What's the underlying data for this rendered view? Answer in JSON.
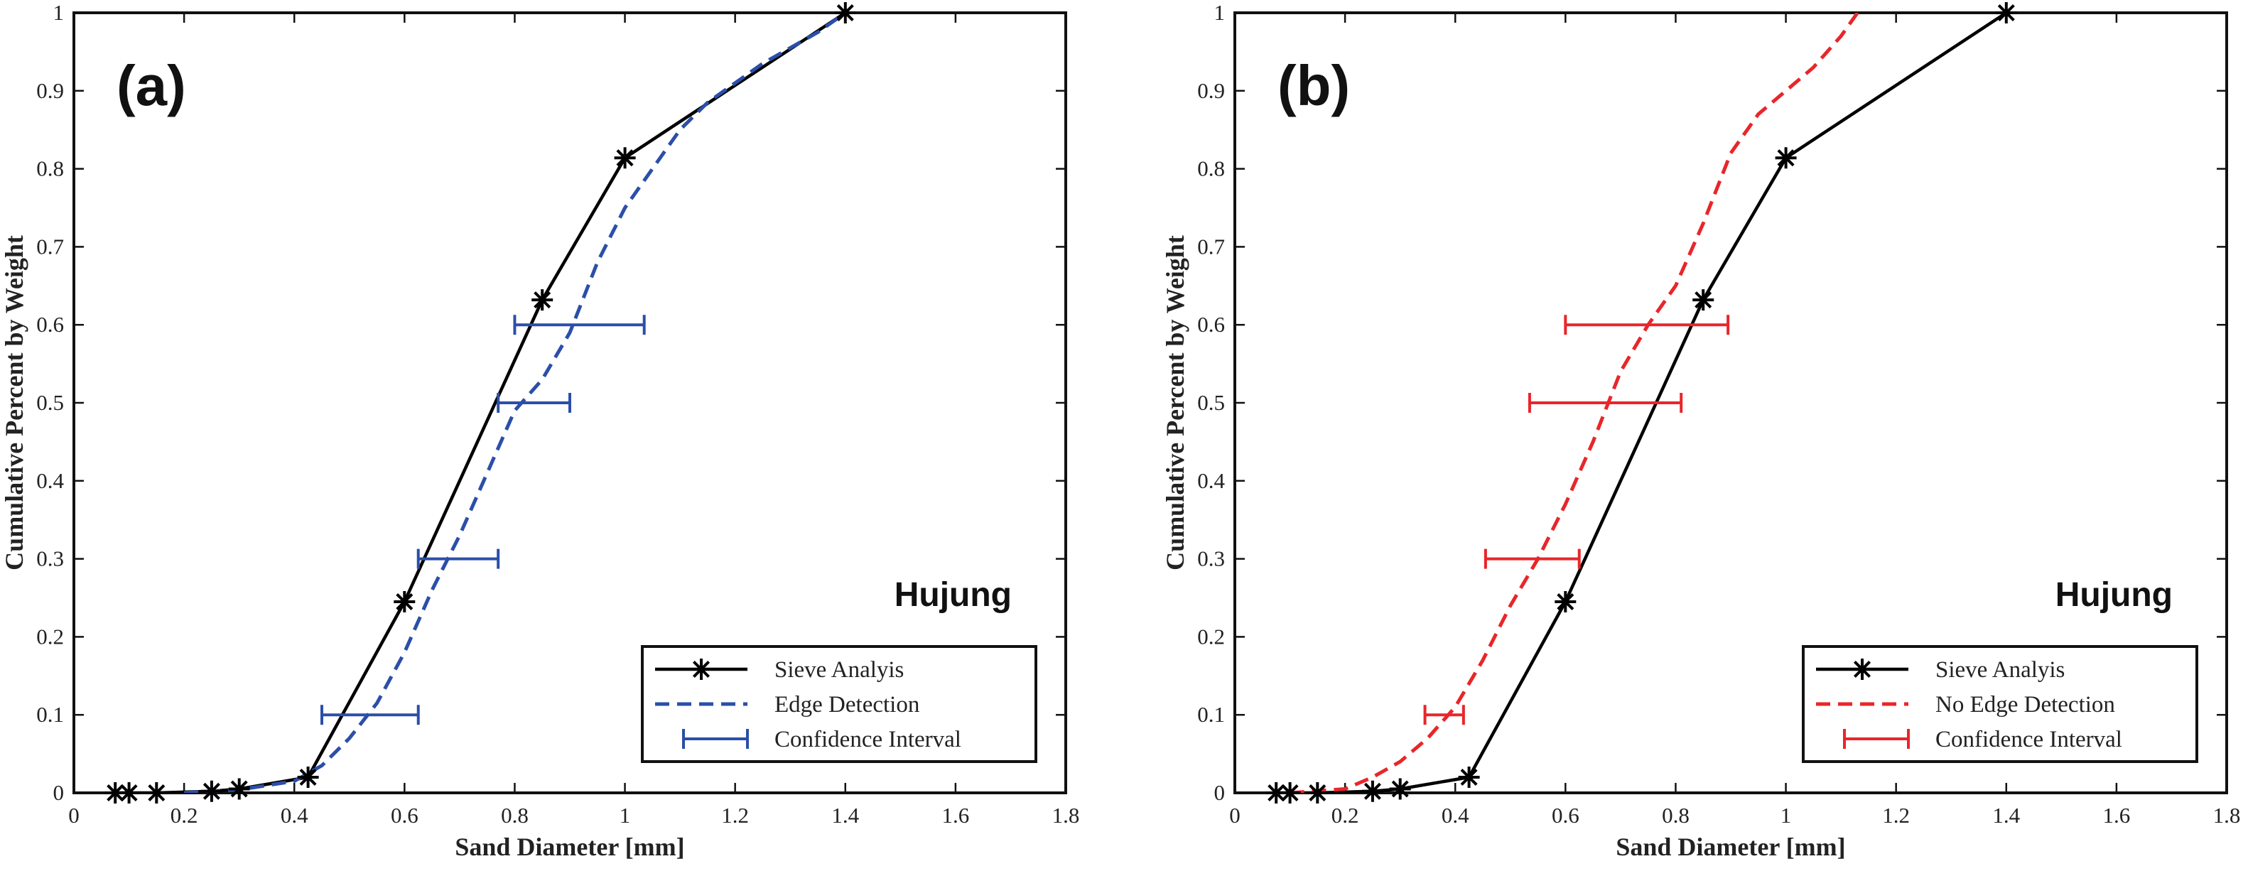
{
  "chart_data": [
    {
      "type": "line",
      "panel_label": "(a)",
      "annotation": "Hujung",
      "xlabel": "Sand Diameter [mm]",
      "ylabel": "Cumulative Percent by Weight",
      "xlim": [
        0,
        1.8
      ],
      "ylim": [
        0,
        1
      ],
      "xticks": [
        0,
        0.2,
        0.4,
        0.6,
        0.8,
        1,
        1.2,
        1.4,
        1.6,
        1.8
      ],
      "xtick_labels": [
        "0",
        "0.2",
        "0.4",
        "0.6",
        "0.8",
        "1",
        "1.2",
        "1.4",
        "1.6",
        "1.8"
      ],
      "yticks": [
        0,
        0.1,
        0.2,
        0.3,
        0.4,
        0.5,
        0.6,
        0.7,
        0.8,
        0.9,
        1
      ],
      "ytick_labels": [
        "0",
        "0.1",
        "0.2",
        "0.3",
        "0.4",
        "0.5",
        "0.6",
        "0.7",
        "0.8",
        "0.9",
        "1"
      ],
      "grid": false,
      "legend_position": "bottom-right",
      "series": [
        {
          "name": "Sieve Analyis",
          "style": "solid-star",
          "color": "#000000",
          "x": [
            0.075,
            0.1,
            0.15,
            0.25,
            0.3,
            0.425,
            0.6,
            0.85,
            1.0,
            1.4
          ],
          "y": [
            0.0,
            0.0,
            0.0,
            0.002,
            0.005,
            0.02,
            0.245,
            0.632,
            0.814,
            1.0
          ]
        },
        {
          "name": "Edge Detection",
          "style": "dashed",
          "color": "#2b4fa8",
          "x": [
            0.2,
            0.3,
            0.4,
            0.45,
            0.5,
            0.55,
            0.6,
            0.65,
            0.7,
            0.75,
            0.8,
            0.85,
            0.9,
            0.95,
            1.0,
            1.05,
            1.1,
            1.15,
            1.2,
            1.25,
            1.3,
            1.35,
            1.4
          ],
          "y": [
            0.0,
            0.004,
            0.015,
            0.035,
            0.07,
            0.115,
            0.18,
            0.26,
            0.33,
            0.41,
            0.49,
            0.53,
            0.59,
            0.68,
            0.75,
            0.8,
            0.85,
            0.885,
            0.91,
            0.935,
            0.955,
            0.975,
            1.0
          ]
        },
        {
          "name": "Confidence Interval",
          "style": "errorbar",
          "color": "#2b4fa8",
          "intervals": [
            {
              "y": 0.1,
              "low": 0.45,
              "high": 0.625
            },
            {
              "y": 0.3,
              "low": 0.625,
              "high": 0.77
            },
            {
              "y": 0.5,
              "low": 0.77,
              "high": 0.9
            },
            {
              "y": 0.6,
              "low": 0.8,
              "high": 1.035
            }
          ]
        }
      ]
    },
    {
      "type": "line",
      "panel_label": "(b)",
      "annotation": "Hujung",
      "xlabel": "Sand Diameter [mm]",
      "ylabel": "Cumulative Percent by Weight",
      "xlim": [
        0,
        1.8
      ],
      "ylim": [
        0,
        1
      ],
      "xticks": [
        0,
        0.2,
        0.4,
        0.6,
        0.8,
        1,
        1.2,
        1.4,
        1.6,
        1.8
      ],
      "xtick_labels": [
        "0",
        "0.2",
        "0.4",
        "0.6",
        "0.8",
        "1",
        "1.2",
        "1.4",
        "1.6",
        "1.8"
      ],
      "yticks": [
        0,
        0.1,
        0.2,
        0.3,
        0.4,
        0.5,
        0.6,
        0.7,
        0.8,
        0.9,
        1
      ],
      "ytick_labels": [
        "0",
        "0.1",
        "0.2",
        "0.3",
        "0.4",
        "0.5",
        "0.6",
        "0.7",
        "0.8",
        "0.9",
        "1"
      ],
      "grid": false,
      "legend_position": "bottom-right",
      "series": [
        {
          "name": "Sieve Analyis",
          "style": "solid-star",
          "color": "#000000",
          "x": [
            0.075,
            0.1,
            0.15,
            0.25,
            0.3,
            0.425,
            0.6,
            0.85,
            1.0,
            1.4
          ],
          "y": [
            0.0,
            0.0,
            0.0,
            0.002,
            0.005,
            0.02,
            0.245,
            0.632,
            0.814,
            1.0
          ]
        },
        {
          "name": "No Edge Detection",
          "style": "dashed",
          "color": "#e8262a",
          "x": [
            0.1,
            0.2,
            0.25,
            0.3,
            0.35,
            0.4,
            0.45,
            0.5,
            0.55,
            0.6,
            0.65,
            0.7,
            0.75,
            0.8,
            0.85,
            0.9,
            0.95,
            1.0,
            1.05,
            1.1,
            1.13
          ],
          "y": [
            0.0,
            0.005,
            0.02,
            0.04,
            0.07,
            0.11,
            0.17,
            0.24,
            0.3,
            0.37,
            0.45,
            0.54,
            0.6,
            0.65,
            0.73,
            0.82,
            0.87,
            0.9,
            0.93,
            0.97,
            1.0
          ]
        },
        {
          "name": "Confidence Interval",
          "style": "errorbar",
          "color": "#e8262a",
          "intervals": [
            {
              "y": 0.1,
              "low": 0.345,
              "high": 0.415
            },
            {
              "y": 0.3,
              "low": 0.455,
              "high": 0.625
            },
            {
              "y": 0.5,
              "low": 0.535,
              "high": 0.81
            },
            {
              "y": 0.6,
              "low": 0.6,
              "high": 0.895
            }
          ]
        }
      ]
    }
  ]
}
